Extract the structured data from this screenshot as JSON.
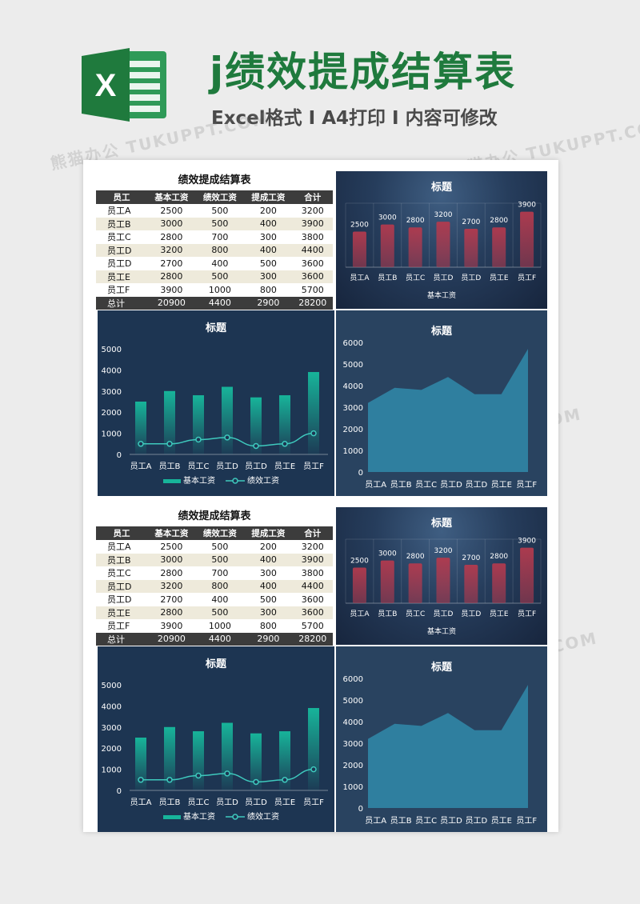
{
  "header": {
    "title": "j绩效提成结算表",
    "subtitle": "Excel格式 Ⅰ A4打印 Ⅰ 内容可修改",
    "logo_letter": "X",
    "logo_color": "#1f7a3d"
  },
  "watermark": "熊猫办公 TUKUPPT.COM",
  "blocks": [
    {
      "table": {
        "title": "绩效提成结算表",
        "headers": [
          "员工",
          "基本工资",
          "绩效工资",
          "提成工资",
          "合计"
        ],
        "rows": [
          [
            "员工A",
            "2500",
            "500",
            "200",
            "3200"
          ],
          [
            "员工B",
            "3000",
            "500",
            "400",
            "3900"
          ],
          [
            "员工C",
            "2800",
            "700",
            "300",
            "3800"
          ],
          [
            "员工D",
            "3200",
            "800",
            "400",
            "4400"
          ],
          [
            "员工D",
            "2700",
            "400",
            "500",
            "3600"
          ],
          [
            "员工E",
            "2800",
            "500",
            "300",
            "3600"
          ],
          [
            "员工F",
            "3900",
            "1000",
            "800",
            "5700"
          ]
        ],
        "total": [
          "总计",
          "20900",
          "4400",
          "2900",
          "28200"
        ]
      }
    },
    {
      "table": {
        "title": "绩效提成结算表",
        "headers": [
          "员工",
          "基本工资",
          "绩效工资",
          "提成工资",
          "合计"
        ],
        "rows": [
          [
            "员工A",
            "2500",
            "500",
            "200",
            "3200"
          ],
          [
            "员工B",
            "3000",
            "500",
            "400",
            "3900"
          ],
          [
            "员工C",
            "2800",
            "700",
            "300",
            "3800"
          ],
          [
            "员工D",
            "3200",
            "800",
            "400",
            "4400"
          ],
          [
            "员工D",
            "2700",
            "400",
            "500",
            "3600"
          ],
          [
            "员工E",
            "2800",
            "500",
            "300",
            "3600"
          ],
          [
            "员工F",
            "3900",
            "1000",
            "800",
            "5700"
          ]
        ],
        "total": [
          "总计",
          "20900",
          "4400",
          "2900",
          "28200"
        ]
      }
    }
  ],
  "chart_data": [
    {
      "type": "bar",
      "title": "标题",
      "categories": [
        "员工A",
        "员工B",
        "员工C",
        "员工D",
        "员工D",
        "员工E",
        "员工F"
      ],
      "series": [
        {
          "name": "基本工资",
          "values": [
            2500,
            3000,
            2800,
            3200,
            2700,
            2800,
            3900
          ]
        }
      ],
      "xlabel": "基本工资",
      "ylim": [
        0,
        4500
      ],
      "data_labels": true,
      "bar_color": "#b23a4e"
    },
    {
      "type": "bar",
      "title": "标题",
      "categories": [
        "员工A",
        "员工B",
        "员工C",
        "员工D",
        "员工D",
        "员工E",
        "员工F"
      ],
      "series": [
        {
          "name": "基本工资",
          "values": [
            2500,
            3000,
            2800,
            3200,
            2700,
            2800,
            3900
          ],
          "kind": "bar"
        },
        {
          "name": "绩效工资",
          "values": [
            500,
            500,
            700,
            800,
            400,
            500,
            1000
          ],
          "kind": "line"
        }
      ],
      "yticks": [
        0,
        1000,
        2000,
        3000,
        4000,
        5000
      ],
      "ylim": [
        0,
        5000
      ],
      "legend": "bottom",
      "bar_color": "#17b49a",
      "line_color": "#3ec9bd"
    },
    {
      "type": "area",
      "categories": [
        "员工A",
        "员工B",
        "员工C",
        "员工D",
        "员工D",
        "员工E",
        "员工F"
      ],
      "series": [
        {
          "values": [
            3200,
            3900,
            3800,
            4400,
            3600,
            3600,
            5700
          ]
        }
      ],
      "title": "标题",
      "yticks": [
        0,
        1000,
        2000,
        3000,
        4000,
        5000,
        6000
      ],
      "ylim": [
        0,
        6000
      ],
      "fill_color": "#2f7f9f"
    }
  ]
}
